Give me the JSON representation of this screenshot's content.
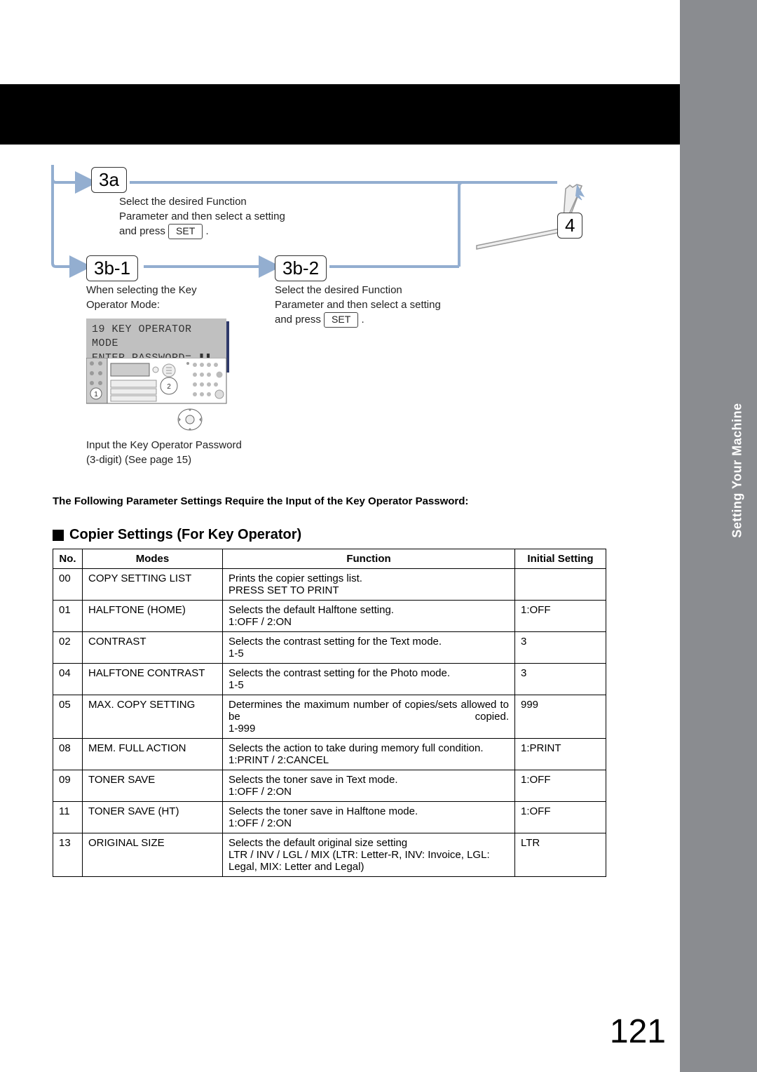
{
  "sideTab": "Setting Your Machine",
  "steps": {
    "s3a": "3a",
    "s3b1": "3b-1",
    "s3b2": "3b-2",
    "s4": "4",
    "txt3a_l1": "Select the desired Function",
    "txt3a_l2": "Parameter and then select a setting",
    "txt3a_l3": "and press ",
    "set": "SET",
    "txt3b1_l1": "When selecting the Key",
    "txt3b1_l2": "Operator Mode:",
    "lcd_l1": "19 KEY OPERATOR MODE",
    "lcd_l2": "ENTER PASSWORD=_❚❚",
    "txt3b1_foot_l1": "Input the Key Operator Password",
    "txt3b1_foot_l2": "(3-digit) (See page 15)",
    "txt3b2_l1": "Select the desired Function",
    "txt3b2_l2": "Parameter and then select a setting",
    "txt3b2_l3": "and press "
  },
  "paramNote": "The Following Parameter Settings Require the Input of the Key Operator Password:",
  "tableTitle": "Copier Settings (For Key Operator)",
  "headers": {
    "no": "No.",
    "modes": "Modes",
    "function": "Function",
    "initial": "Initial Setting"
  },
  "rows": [
    {
      "no": "00",
      "mode": "COPY SETTING LIST",
      "func": "Prints the copier settings list.\nPRESS SET TO PRINT",
      "init": ""
    },
    {
      "no": "01",
      "mode": "HALFTONE (HOME)",
      "func": "Selects the default Halftone setting.\n1:OFF / 2:ON",
      "init": "1:OFF"
    },
    {
      "no": "02",
      "mode": "CONTRAST",
      "func": "Selects the contrast setting for the Text mode.\n1-5",
      "init": "3"
    },
    {
      "no": "04",
      "mode": "HALFTONE CONTRAST",
      "func": "Selects the contrast setting for the Photo mode.\n1-5",
      "init": "3"
    },
    {
      "no": "05",
      "mode": "MAX. COPY SETTING",
      "func": "Determines the maximum number of copies/sets allowed to be copied.\n1-999",
      "init": "999",
      "justify": true
    },
    {
      "no": "08",
      "mode": "MEM. FULL ACTION",
      "func": "Selects the action to take during memory full condition.\n1:PRINT / 2:CANCEL",
      "init": "1:PRINT"
    },
    {
      "no": "09",
      "mode": "TONER SAVE",
      "func": "Selects the toner save in Text mode.\n1:OFF / 2:ON",
      "init": "1:OFF"
    },
    {
      "no": "11",
      "mode": "TONER SAVE (HT)",
      "func": "Selects the toner save in Halftone mode.\n1:OFF / 2:ON",
      "init": "1:OFF"
    },
    {
      "no": "13",
      "mode": "ORIGINAL SIZE",
      "func": "Selects the default original size setting\nLTR / INV / LGL / MIX (LTR: Letter-R, INV: Invoice, LGL: Legal, MIX: Letter and Legal)",
      "init": "LTR"
    }
  ],
  "pageNum": "121",
  "colors": {
    "arrow": "#93aed0",
    "lcdShadow": "#2f3a6b"
  }
}
